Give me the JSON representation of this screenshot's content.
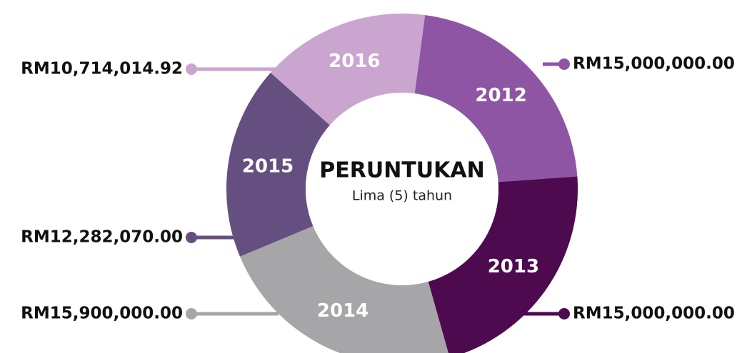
{
  "chart_data": {
    "type": "donut",
    "title": "PERUNTUKAN",
    "subtitle": "Lima (5) tahun",
    "categories": [
      "2012",
      "2013",
      "2014",
      "2015",
      "2016"
    ],
    "values": [
      15000000,
      15000000,
      15900000,
      12282070,
      10714014.92
    ],
    "value_labels": [
      "RM15,000,000.00",
      "RM15,000,000.00",
      "RM15,900,000.00",
      "RM12,282,070.00",
      "RM10,714,014.92"
    ],
    "colors": [
      "#8e55a5",
      "#4d0a4f",
      "#a6a6a8",
      "#654f80",
      "#c9a5cf"
    ]
  }
}
